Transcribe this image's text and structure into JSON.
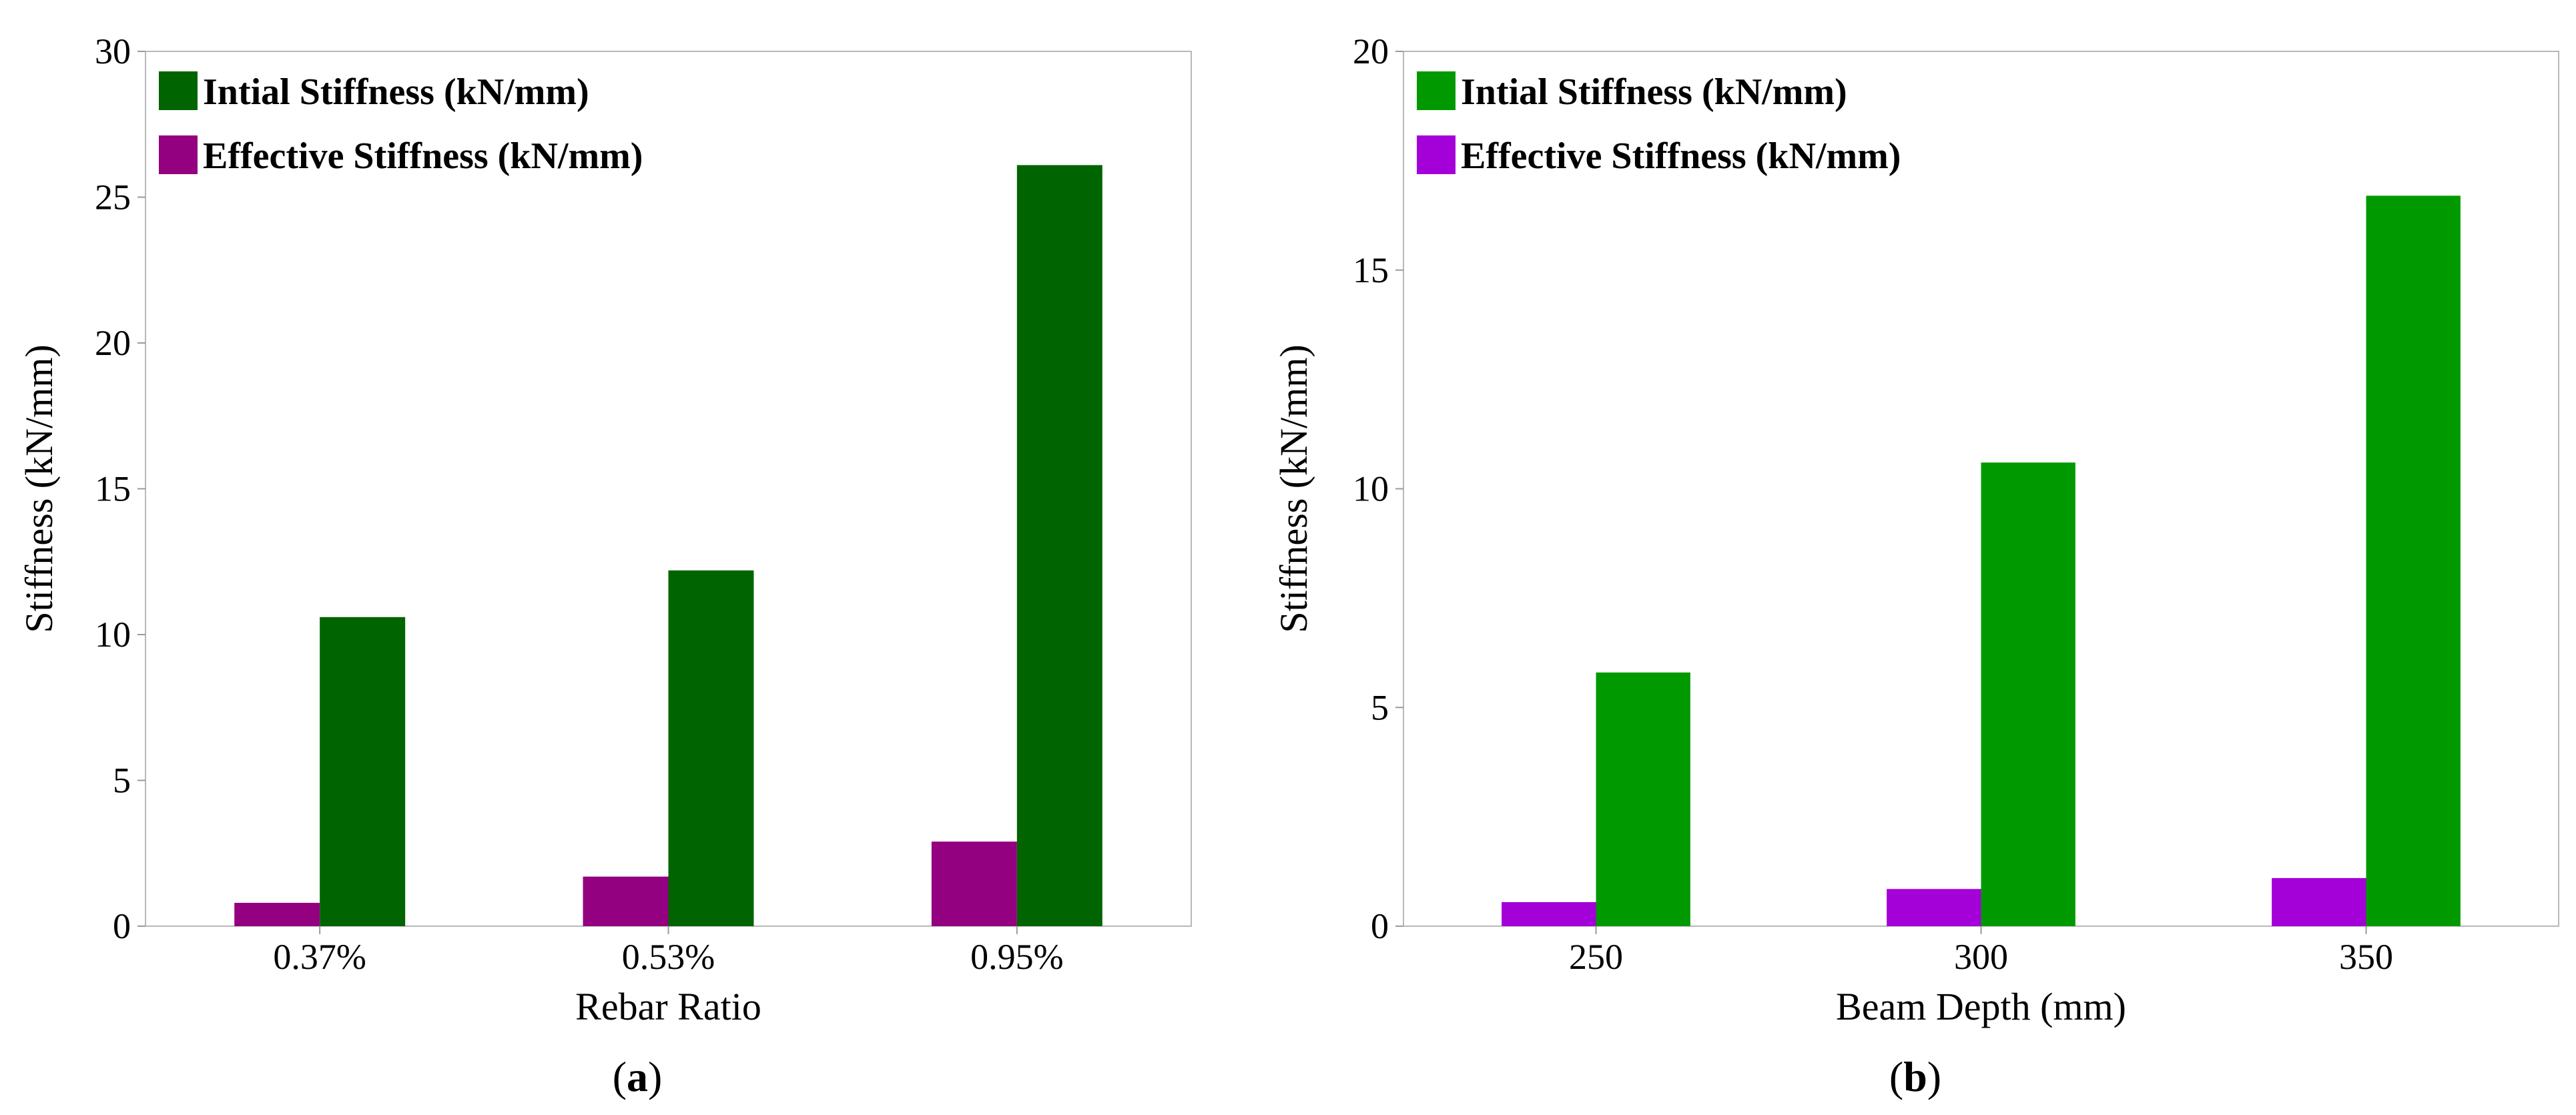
{
  "chart_data": [
    {
      "type": "bar",
      "panel_label": "a",
      "categories": [
        "0.37%",
        "0.53%",
        "0.95%"
      ],
      "series": [
        {
          "name": "Effective Stiffness (kN/mm)",
          "color": "#930080",
          "values": [
            0.8,
            1.7,
            2.9
          ]
        },
        {
          "name": "Intial Stiffness (kN/mm)",
          "color": "#006400",
          "values": [
            10.6,
            12.2,
            26.1
          ]
        }
      ],
      "legend_order": [
        1,
        0
      ],
      "xlabel": "Rebar Ratio",
      "ylabel": "Stiffness (kN/mm)",
      "ylim": [
        0,
        30
      ],
      "yticks": [
        0,
        5,
        10,
        15,
        20,
        25,
        30
      ],
      "grid": false,
      "legend_position": "top-left"
    },
    {
      "type": "bar",
      "panel_label": "b",
      "categories": [
        "250",
        "300",
        "350"
      ],
      "series": [
        {
          "name": "Effective Stiffness (kN/mm)",
          "color": "#A400D8",
          "values": [
            0.55,
            0.85,
            1.1
          ]
        },
        {
          "name": "Intial Stiffness (kN/mm)",
          "color": "#009A00",
          "values": [
            5.8,
            10.6,
            16.7
          ]
        }
      ],
      "legend_order": [
        1,
        0
      ],
      "xlabel": "Beam Depth (mm)",
      "ylabel": "Stiffness (kN/mm)",
      "ylim": [
        0,
        20
      ],
      "yticks": [
        0,
        5,
        10,
        15,
        20
      ],
      "grid": false,
      "legend_position": "top-left"
    }
  ]
}
